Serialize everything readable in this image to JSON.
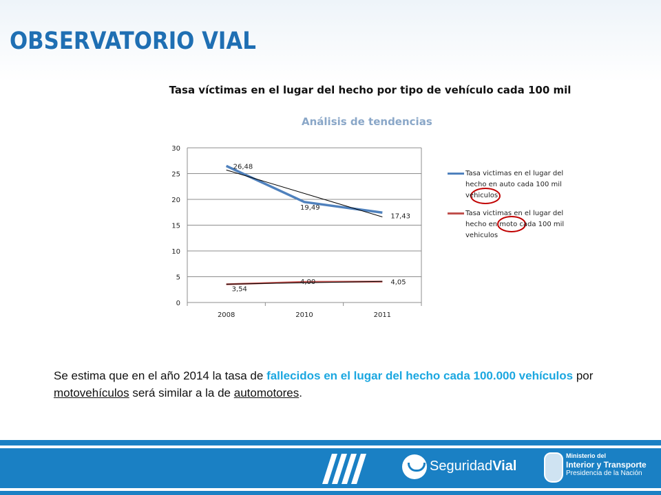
{
  "header": {
    "brand": "OBSERVATORIO VIAL",
    "title": "Tasa víctimas en el lugar del hecho por tipo de vehículo cada 100 mil"
  },
  "chart_data": {
    "type": "line",
    "title": "Análisis de tendencias",
    "categories": [
      "2008",
      "2010",
      "2011"
    ],
    "ylim": [
      0,
      30
    ],
    "yticks": [
      0,
      5,
      10,
      15,
      20,
      25,
      30
    ],
    "grid": true,
    "legend_position": "right",
    "series": [
      {
        "name": "Tasa victimas en el lugar del hecho en auto cada 100 mil vehiculos",
        "values": [
          26.48,
          19.49,
          17.43
        ],
        "labels": [
          "26,48",
          "19,49",
          "17,43"
        ],
        "color": "#4f81bd",
        "trendline": [
          25.7,
          16.6
        ]
      },
      {
        "name": "Tasa victimas en el lugar del hecho en moto cada 100 mil vehiculos",
        "values": [
          3.54,
          4.0,
          4.05
        ],
        "labels": [
          "3,54",
          "4,00",
          "4,05"
        ],
        "color": "#c0504d",
        "trendline": [
          3.55,
          4.1
        ]
      }
    ],
    "trendline_color": "#000000",
    "highlight_color": "#c00000"
  },
  "body": {
    "part1": "Se estima que en el año 2014 la tasa de ",
    "highlight": "fallecidos en el lugar del hecho cada 100.000 vehículos",
    "part2": " por ",
    "link1": "motovehículos",
    "part3": " será similar a la de ",
    "link2": "automotores",
    "part4": "."
  },
  "footer": {
    "logo_left": "Seguridad",
    "logo_right": "Vial",
    "ministry_line1": "Ministerio del",
    "ministry_line2": "Interior y Transporte",
    "ministry_line3": "Presidencia de la Nación",
    "bg_color": "#1a80c4"
  }
}
